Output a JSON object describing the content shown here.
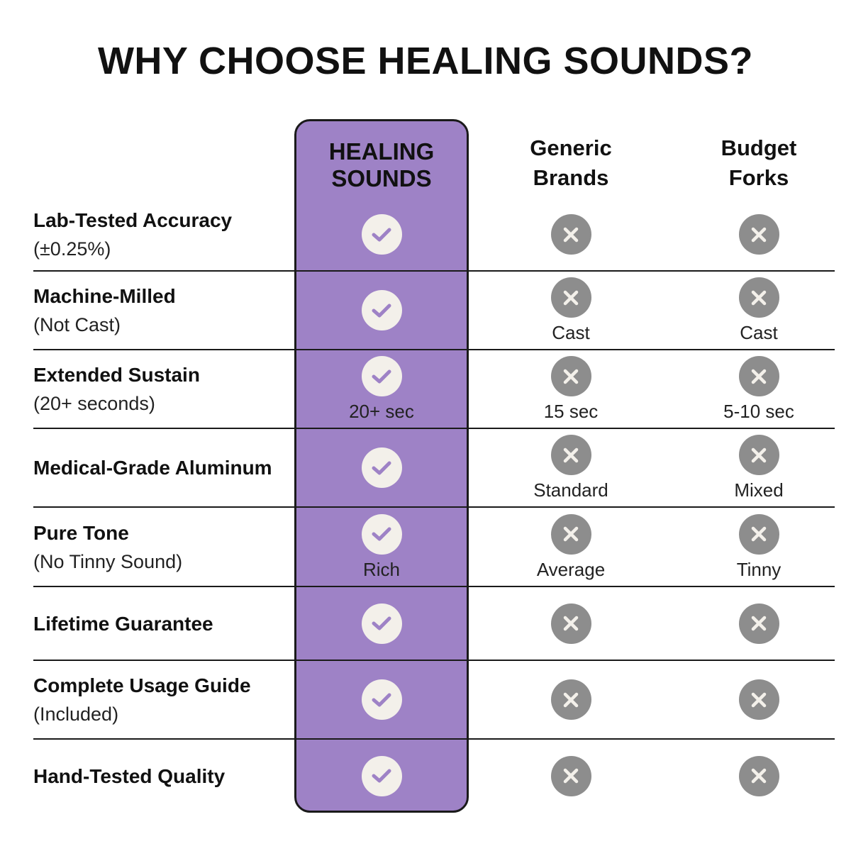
{
  "title": "WHY CHOOSE HEALING SOUNDS?",
  "columns": [
    "HEALING SOUNDS",
    "Generic Brands",
    "Budget Forks"
  ],
  "colors": {
    "highlight": "#9e82c6",
    "check_bg": "#f3f0ea",
    "check_mark": "#9e82c6",
    "cross_bg": "#8d8d8d"
  },
  "rows": [
    {
      "label": "Lab-Tested Accuracy",
      "sub": "(±0.25%)",
      "cells": [
        {
          "icon": "check-icon",
          "note": ""
        },
        {
          "icon": "x-icon",
          "note": ""
        },
        {
          "icon": "x-icon",
          "note": ""
        }
      ]
    },
    {
      "label": "Machine-Milled",
      "sub": "(Not Cast)",
      "cells": [
        {
          "icon": "check-icon",
          "note": ""
        },
        {
          "icon": "x-icon",
          "note": "Cast"
        },
        {
          "icon": "x-icon",
          "note": "Cast"
        }
      ]
    },
    {
      "label": "Extended Sustain",
      "sub": "(20+ seconds)",
      "cells": [
        {
          "icon": "check-icon",
          "note": "20+ sec"
        },
        {
          "icon": "x-icon",
          "note": "15 sec"
        },
        {
          "icon": "x-icon",
          "note": "5-10 sec"
        }
      ]
    },
    {
      "label": "Medical-Grade Aluminum",
      "sub": "",
      "cells": [
        {
          "icon": "check-icon",
          "note": ""
        },
        {
          "icon": "x-icon",
          "note": "Standard"
        },
        {
          "icon": "x-icon",
          "note": "Mixed"
        }
      ]
    },
    {
      "label": "Pure Tone",
      "sub": "(No Tinny Sound)",
      "cells": [
        {
          "icon": "check-icon",
          "note": "Rich"
        },
        {
          "icon": "x-icon",
          "note": "Average"
        },
        {
          "icon": "x-icon",
          "note": "Tinny"
        }
      ]
    },
    {
      "label": "Lifetime Guarantee",
      "sub": "",
      "cells": [
        {
          "icon": "check-icon",
          "note": ""
        },
        {
          "icon": "x-icon",
          "note": ""
        },
        {
          "icon": "x-icon",
          "note": ""
        }
      ]
    },
    {
      "label": "Complete Usage Guide",
      "sub": "(Included)",
      "cells": [
        {
          "icon": "check-icon",
          "note": ""
        },
        {
          "icon": "x-icon",
          "note": ""
        },
        {
          "icon": "x-icon",
          "note": ""
        }
      ]
    },
    {
      "label": "Hand-Tested Quality",
      "sub": "",
      "cells": [
        {
          "icon": "check-icon",
          "note": ""
        },
        {
          "icon": "x-icon",
          "note": ""
        },
        {
          "icon": "x-icon",
          "note": ""
        }
      ]
    }
  ]
}
